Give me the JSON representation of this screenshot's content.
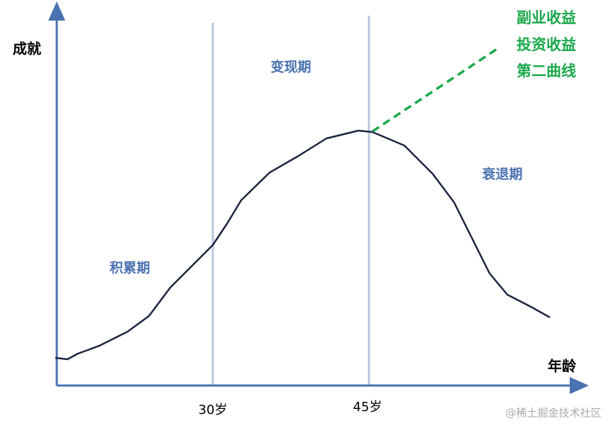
{
  "axes": {
    "y_label": "成就",
    "x_label": "年龄"
  },
  "markers": [
    "30岁",
    "45岁"
  ],
  "phases": [
    "积累期",
    "变现期",
    "衰退期"
  ],
  "second_curve": [
    "副业收益",
    "投资收益",
    "第二曲线"
  ],
  "watermark": "@稀土掘金技术社区"
}
